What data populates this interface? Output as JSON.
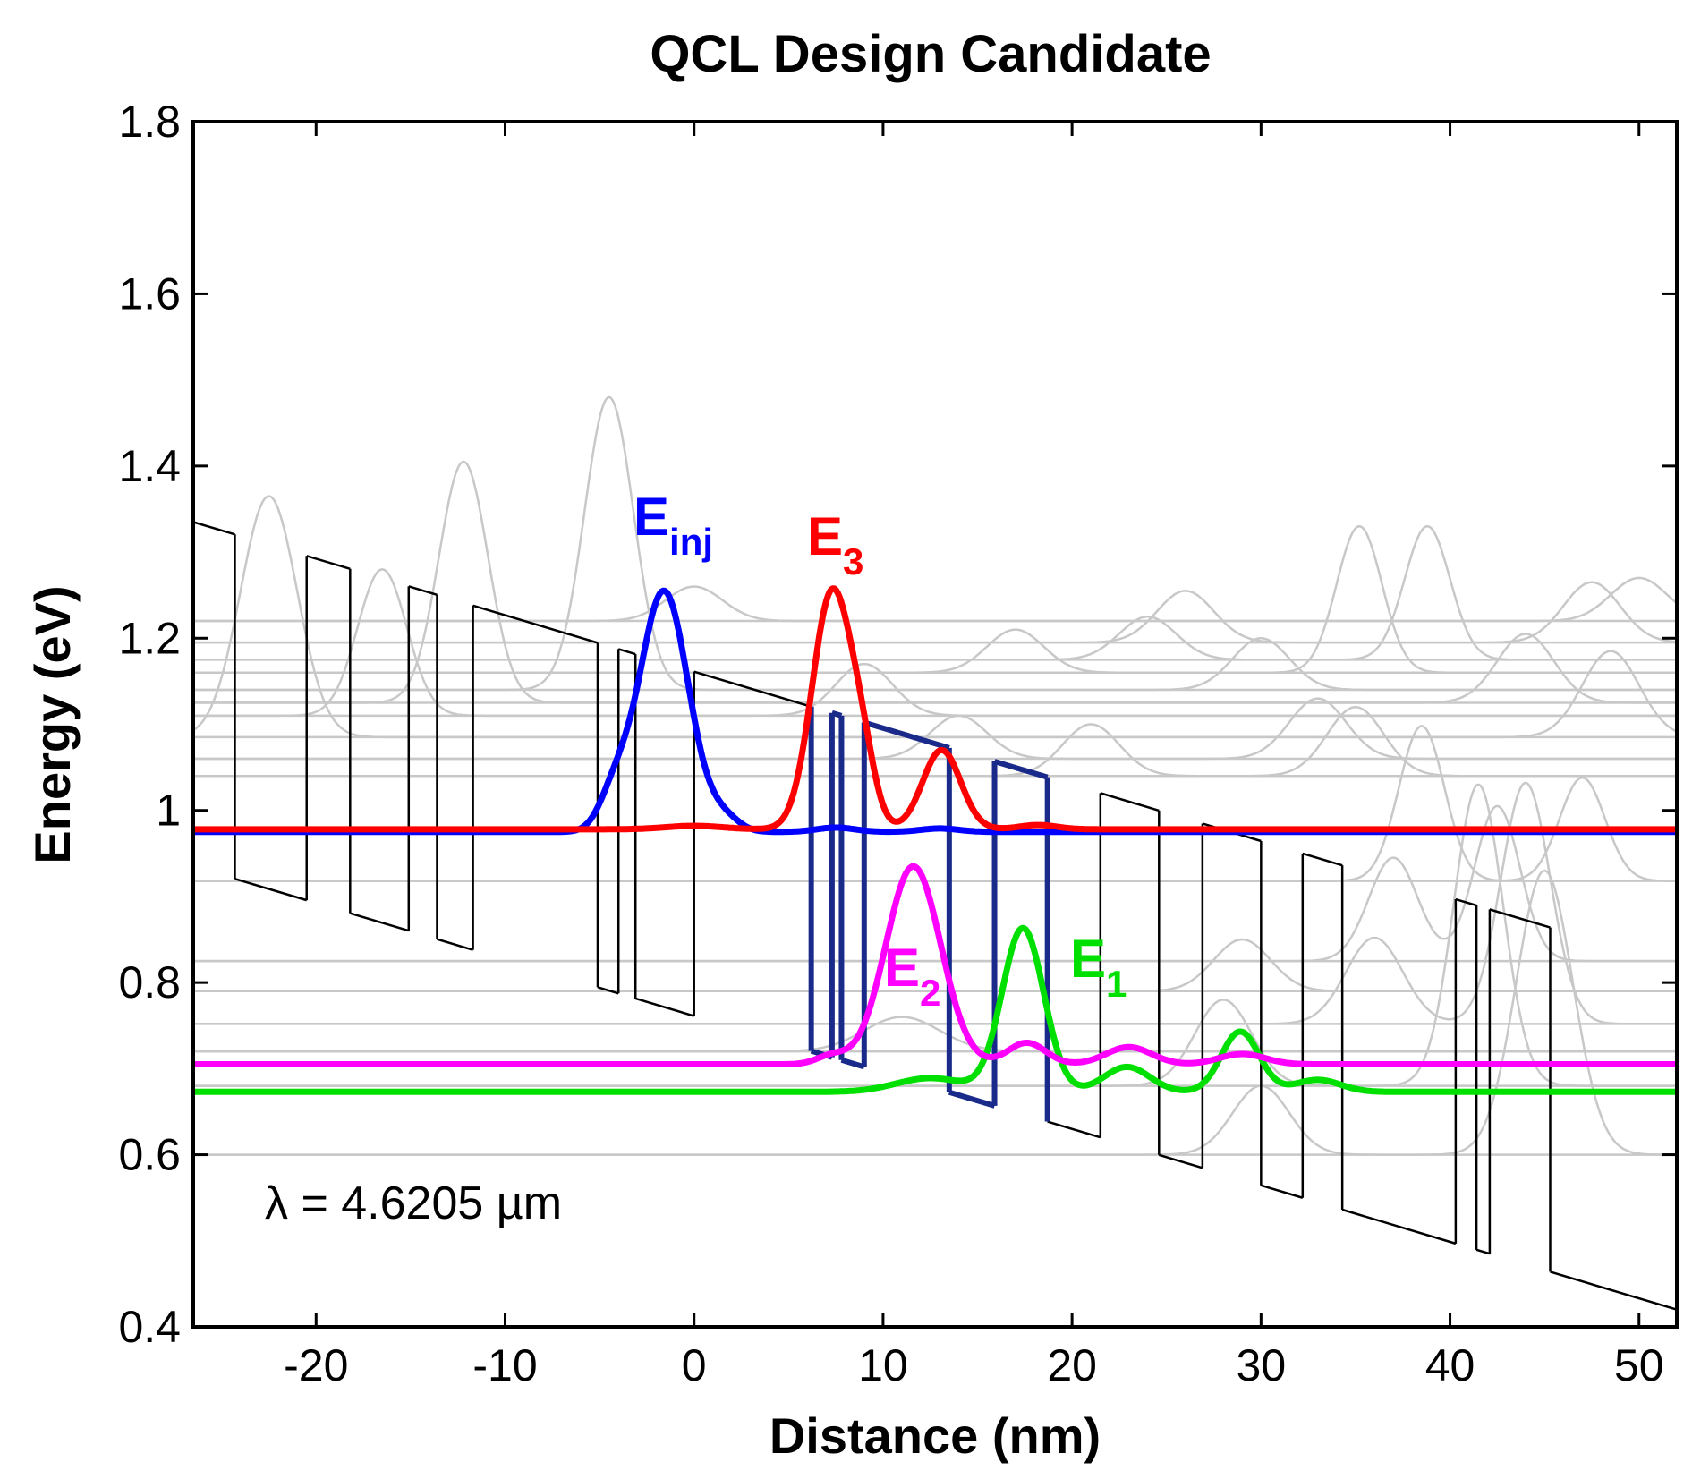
{
  "chart_data": {
    "type": "line",
    "title": "QCL Design Candidate",
    "xlabel": "Distance (nm)",
    "ylabel": "Energy (eV)",
    "xlim": [
      -26.5,
      52
    ],
    "ylim": [
      0.4,
      1.8
    ],
    "xticks": [
      -20,
      -10,
      0,
      10,
      20,
      30,
      40,
      50
    ],
    "yticks": [
      0.4,
      0.6,
      0.8,
      1.0,
      1.2,
      1.4,
      1.6,
      1.8
    ],
    "xtick_labels": [
      "-20",
      "-10",
      "0",
      "10",
      "20",
      "30",
      "40",
      "50"
    ],
    "ytick_labels": [
      "0.4",
      "0.6",
      "0.8",
      "1",
      "1.2",
      "1.4",
      "1.6",
      "1.8"
    ],
    "grid": false,
    "annotation_text": "λ = 4.6205 µm",
    "colors": {
      "band": "#000000",
      "active_band": "#1a2a8a",
      "einj": "#0000ff",
      "e3": "#ff0000",
      "e2": "#ff00ff",
      "e1": "#00e000",
      "other_states": "#c8c8c8"
    },
    "conduction_band": {
      "field_slope_ev_per_nm": -0.00656,
      "barrier_offset_ev": 0.4,
      "ref_x": -26.5,
      "ref_well_ev": 0.935,
      "boundaries": [
        -24.3,
        -20.5,
        -18.2,
        -15.1,
        -13.6,
        -11.7,
        -5.1,
        -4.0,
        -3.1,
        0.0,
        6.2,
        7.3,
        7.8,
        9.0,
        13.5,
        15.9,
        18.7,
        21.5,
        24.6,
        26.9,
        30.0,
        32.2,
        34.3,
        40.3,
        41.4,
        42.1,
        45.3
      ],
      "active_region": [
        6.2,
        18.7
      ]
    },
    "series": [
      {
        "name": "E_inj",
        "label": "E",
        "subscript": "inj",
        "energy": 0.975,
        "lobes": [
          {
            "center": -1.6,
            "height": 0.28,
            "width": 1.3
          },
          {
            "center": -4.2,
            "height": 0.04,
            "width": 0.8
          },
          {
            "center": 1.6,
            "height": 0.015,
            "width": 0.8
          },
          {
            "center": 7.5,
            "height": 0.005,
            "width": 1.0
          },
          {
            "center": 13.0,
            "height": 0.004,
            "width": 1.0
          }
        ]
      },
      {
        "name": "E3",
        "label": "E",
        "subscript": "3",
        "energy": 0.978,
        "lobes": [
          {
            "center": 7.3,
            "height": 0.275,
            "width": 1.05
          },
          {
            "center": 8.9,
            "height": 0.06,
            "width": 0.7
          },
          {
            "center": 13.1,
            "height": 0.092,
            "width": 1.0
          },
          {
            "center": 18.2,
            "height": 0.005,
            "width": 1.0
          },
          {
            "center": 0.0,
            "height": 0.004,
            "width": 1.5
          }
        ]
      },
      {
        "name": "E2",
        "label": "E",
        "subscript": "2",
        "energy": 0.705,
        "lobes": [
          {
            "center": 11.6,
            "height": 0.23,
            "width": 1.45
          },
          {
            "center": 17.6,
            "height": 0.025,
            "width": 1.0
          },
          {
            "center": 23.0,
            "height": 0.02,
            "width": 1.2
          },
          {
            "center": 29.0,
            "height": 0.012,
            "width": 1.2
          },
          {
            "center": 7.3,
            "height": 0.01,
            "width": 0.8
          }
        ]
      },
      {
        "name": "E1",
        "label": "E",
        "subscript": "1",
        "energy": 0.673,
        "lobes": [
          {
            "center": 17.4,
            "height": 0.19,
            "width": 1.1
          },
          {
            "center": 12.5,
            "height": 0.016,
            "width": 1.8
          },
          {
            "center": 22.9,
            "height": 0.029,
            "width": 1.2
          },
          {
            "center": 28.9,
            "height": 0.07,
            "width": 1.0
          },
          {
            "center": 33.0,
            "height": 0.014,
            "width": 1.2
          }
        ]
      }
    ],
    "other_states": [
      {
        "energy": 0.6,
        "peaks": [
          {
            "center": 45.0,
            "height": 0.33,
            "width": 1.5
          },
          {
            "center": 30.0,
            "height": 0.08,
            "width": 1.5
          }
        ]
      },
      {
        "energy": 0.68,
        "peaks": [
          {
            "center": 41.5,
            "height": 0.35,
            "width": 1.3
          },
          {
            "center": 28.0,
            "height": 0.1,
            "width": 1.5
          }
        ]
      },
      {
        "energy": 0.72,
        "peaks": [
          {
            "center": 11.0,
            "height": 0.04,
            "width": 2.0
          }
        ]
      },
      {
        "energy": 0.752,
        "peaks": [
          {
            "center": 44.0,
            "height": 0.28,
            "width": 1.3
          },
          {
            "center": 36.0,
            "height": 0.1,
            "width": 1.5
          }
        ]
      },
      {
        "energy": 0.79,
        "peaks": [
          {
            "center": 29.0,
            "height": 0.06,
            "width": 1.5
          }
        ]
      },
      {
        "energy": 0.825,
        "peaks": [
          {
            "center": 37.0,
            "height": 0.12,
            "width": 1.3
          },
          {
            "center": 42.5,
            "height": 0.18,
            "width": 1.2
          }
        ]
      },
      {
        "energy": 0.918,
        "peaks": [
          {
            "center": 38.5,
            "height": 0.18,
            "width": 1.2
          },
          {
            "center": 47.0,
            "height": 0.12,
            "width": 1.2
          }
        ]
      },
      {
        "energy": 1.04,
        "peaks": [
          {
            "center": 21.0,
            "height": 0.06,
            "width": 1.5
          },
          {
            "center": 35.0,
            "height": 0.08,
            "width": 1.5
          }
        ]
      },
      {
        "energy": 1.06,
        "peaks": [
          {
            "center": 14.0,
            "height": 0.05,
            "width": 1.5
          },
          {
            "center": 33.0,
            "height": 0.07,
            "width": 1.5
          }
        ]
      },
      {
        "energy": 1.085,
        "peaks": [
          {
            "center": -22.5,
            "height": 0.28,
            "width": 1.5
          },
          {
            "center": 48.5,
            "height": 0.1,
            "width": 1.5
          }
        ]
      },
      {
        "energy": 1.11,
        "peaks": [
          {
            "center": -16.5,
            "height": 0.17,
            "width": 1.3
          },
          {
            "center": 9.0,
            "height": 0.06,
            "width": 1.5
          }
        ]
      },
      {
        "energy": 1.125,
        "peaks": [
          {
            "center": -12.2,
            "height": 0.28,
            "width": 1.3
          },
          {
            "center": 44.0,
            "height": 0.08,
            "width": 1.5
          }
        ]
      },
      {
        "energy": 1.14,
        "peaks": [
          {
            "center": -4.5,
            "height": 0.34,
            "width": 1.3
          },
          {
            "center": 30.0,
            "height": 0.06,
            "width": 1.5
          }
        ]
      },
      {
        "energy": 1.16,
        "peaks": [
          {
            "center": 35.2,
            "height": 0.17,
            "width": 1.2
          },
          {
            "center": 17.0,
            "height": 0.05,
            "width": 1.5
          }
        ]
      },
      {
        "energy": 1.175,
        "peaks": [
          {
            "center": 38.8,
            "height": 0.155,
            "width": 1.2
          },
          {
            "center": 24.0,
            "height": 0.05,
            "width": 1.5
          }
        ]
      },
      {
        "energy": 1.195,
        "peaks": [
          {
            "center": 47.5,
            "height": 0.07,
            "width": 1.5
          },
          {
            "center": 26.0,
            "height": 0.06,
            "width": 1.5
          }
        ]
      },
      {
        "energy": 1.22,
        "peaks": [
          {
            "center": 0.0,
            "height": 0.04,
            "width": 1.5
          },
          {
            "center": 50.0,
            "height": 0.05,
            "width": 1.5
          }
        ]
      }
    ]
  }
}
